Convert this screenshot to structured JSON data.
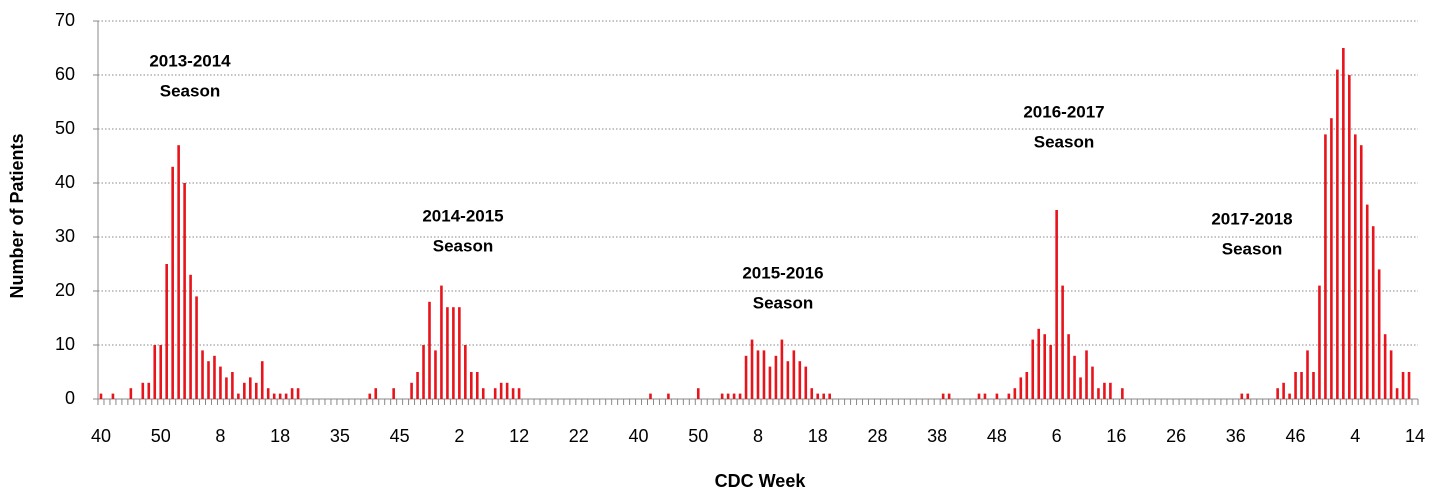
{
  "chart_data": {
    "type": "bar",
    "x_label": "CDC Week",
    "y_label": "Number of Patients",
    "color": "#e8141c",
    "ylim": [
      0,
      70
    ],
    "yticks": [
      0,
      10,
      20,
      30,
      40,
      50,
      60,
      70
    ],
    "grid": true,
    "annotations": [
      [
        "2013-2014",
        "Season"
      ],
      [
        "2014-2015",
        "Season"
      ],
      [
        "2015-2016",
        "Season"
      ],
      [
        "2016-2017",
        "Season"
      ],
      [
        "2017-2018",
        "Season"
      ]
    ],
    "categories": [
      "40",
      null,
      null,
      null,
      null,
      null,
      null,
      null,
      null,
      null,
      "50",
      null,
      null,
      null,
      null,
      null,
      null,
      null,
      null,
      null,
      "8",
      null,
      null,
      null,
      null,
      null,
      null,
      null,
      null,
      null,
      "18",
      null,
      null,
      null,
      null,
      null,
      null,
      null,
      null,
      null,
      "35",
      null,
      null,
      null,
      null,
      null,
      null,
      null,
      null,
      null,
      "45",
      null,
      null,
      null,
      null,
      null,
      null,
      null,
      null,
      null,
      "2",
      null,
      null,
      null,
      null,
      null,
      null,
      null,
      null,
      null,
      "12",
      null,
      null,
      null,
      null,
      null,
      null,
      null,
      null,
      null,
      "22",
      null,
      null,
      null,
      null,
      null,
      null,
      null,
      null,
      null,
      "40",
      null,
      null,
      null,
      null,
      null,
      null,
      null,
      null,
      null,
      "50",
      null,
      null,
      null,
      null,
      null,
      null,
      null,
      null,
      null,
      "8",
      null,
      null,
      null,
      null,
      null,
      null,
      null,
      null,
      null,
      "18",
      null,
      null,
      null,
      null,
      null,
      null,
      null,
      null,
      null,
      "28",
      null,
      null,
      null,
      null,
      null,
      null,
      null,
      null,
      null,
      "38",
      null,
      null,
      null,
      null,
      null,
      null,
      null,
      null,
      null,
      "48",
      null,
      null,
      null,
      null,
      null,
      null,
      null,
      null,
      null,
      "6",
      null,
      null,
      null,
      null,
      null,
      null,
      null,
      null,
      null,
      "16",
      null,
      null,
      null,
      null,
      null,
      null,
      null,
      null,
      null,
      "26",
      null,
      null,
      null,
      null,
      null,
      null,
      null,
      null,
      null,
      "36",
      null,
      null,
      null,
      null,
      null,
      null,
      null,
      null,
      null,
      "46",
      null,
      null,
      null,
      null,
      null,
      null,
      null,
      null,
      null,
      "4",
      null,
      null,
      null,
      null,
      null,
      null,
      null,
      null,
      null,
      "14"
    ],
    "values": [
      1,
      0,
      1,
      0,
      0,
      2,
      0,
      3,
      3,
      10,
      10,
      25,
      43,
      47,
      40,
      23,
      19,
      9,
      7,
      8,
      6,
      4,
      5,
      1,
      3,
      4,
      3,
      7,
      2,
      1,
      1,
      1,
      2,
      2,
      0,
      0,
      0,
      0,
      0,
      0,
      0,
      0,
      0,
      0,
      0,
      1,
      2,
      0,
      0,
      2,
      0,
      0,
      3,
      5,
      10,
      18,
      9,
      21,
      17,
      17,
      17,
      10,
      5,
      5,
      2,
      0,
      2,
      3,
      3,
      2,
      2,
      0,
      0,
      0,
      0,
      0,
      0,
      0,
      0,
      0,
      0,
      0,
      0,
      0,
      0,
      0,
      0,
      0,
      0,
      0,
      0,
      0,
      1,
      0,
      0,
      1,
      0,
      0,
      0,
      0,
      2,
      0,
      0,
      0,
      1,
      1,
      1,
      1,
      8,
      11,
      9,
      9,
      6,
      8,
      11,
      7,
      9,
      7,
      6,
      2,
      1,
      1,
      1,
      0,
      0,
      0,
      0,
      0,
      0,
      0,
      0,
      0,
      0,
      0,
      0,
      0,
      0,
      0,
      0,
      0,
      0,
      1,
      1,
      0,
      0,
      0,
      0,
      1,
      1,
      0,
      1,
      0,
      1,
      2,
      4,
      5,
      11,
      13,
      12,
      10,
      35,
      21,
      12,
      8,
      4,
      9,
      6,
      2,
      3,
      3,
      0,
      2,
      0,
      0,
      0,
      0,
      0,
      0,
      0,
      0,
      0,
      0,
      0,
      0,
      0,
      0,
      0,
      0,
      0,
      0,
      0,
      1,
      1,
      0,
      0,
      0,
      0,
      2,
      3,
      1,
      5,
      5,
      9,
      5,
      21,
      49,
      52,
      61,
      65,
      60,
      49,
      47,
      36,
      32,
      24,
      12,
      9,
      2,
      5,
      5,
      0
    ]
  }
}
